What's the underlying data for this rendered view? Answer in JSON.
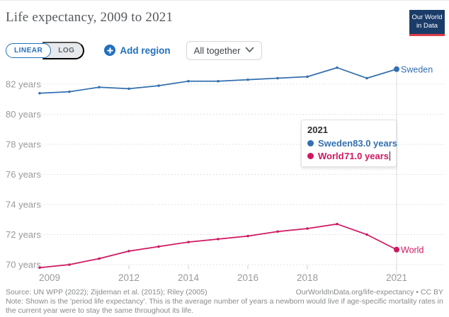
{
  "header": {
    "title": "Life expectancy, 2009 to 2021",
    "logo": {
      "line1": "Our World",
      "line2": "in Data"
    }
  },
  "controls": {
    "linear_label": "LINEAR",
    "log_label": "LOG",
    "add_region_label": "Add region",
    "entity_mode_value": "All together"
  },
  "chart_data": {
    "type": "line",
    "title": "Life expectancy, 2009 to 2021",
    "x": [
      2009,
      2010,
      2011,
      2012,
      2013,
      2014,
      2015,
      2016,
      2017,
      2018,
      2019,
      2020,
      2021
    ],
    "series": [
      {
        "name": "Sweden",
        "color": "#3470af",
        "values": [
          81.4,
          81.5,
          81.8,
          81.7,
          81.9,
          82.2,
          82.2,
          82.3,
          82.4,
          82.5,
          83.1,
          82.4,
          83.0
        ]
      },
      {
        "name": "World",
        "color": "#cf1861",
        "values": [
          69.8,
          70.0,
          70.4,
          70.9,
          71.2,
          71.5,
          71.7,
          71.9,
          72.2,
          72.4,
          72.7,
          72.0,
          71.0
        ]
      }
    ],
    "xticks": [
      2009,
      2012,
      2014,
      2016,
      2018,
      2021
    ],
    "yticks": [
      70,
      72,
      74,
      76,
      78,
      80,
      82
    ],
    "ytick_suffix": " years",
    "xlim": [
      2009,
      2021
    ],
    "ylim": [
      69.5,
      83.6
    ],
    "grid": "horizontal-dotted",
    "legend": "end-of-line-labels",
    "hover_year": 2021
  },
  "tooltip": {
    "year": "2021",
    "rows": [
      {
        "entity": "Sweden",
        "value": "83.0 years"
      },
      {
        "entity": "World",
        "value": "71.0 years"
      }
    ]
  },
  "footer": {
    "source": "Source: UN WPP (2022); Zijdeman et al. (2015); Riley (2005)",
    "link": "OurWorldInData.org/life-expectancy • CC BY",
    "note": "Note: Shown is the 'period life expectancy'. This is the average number of years a newborn would live if age-specific mortality rates in the current year were to stay the same throughout its life."
  },
  "colors": {
    "ui_accent": "#2170bd",
    "logo_bg": "#1b3c69",
    "logo_accent": "#dc3c46",
    "grid": "#d9d9d9",
    "axis_text": "#9a9a9a",
    "hover_line": "#dcdcdc"
  }
}
